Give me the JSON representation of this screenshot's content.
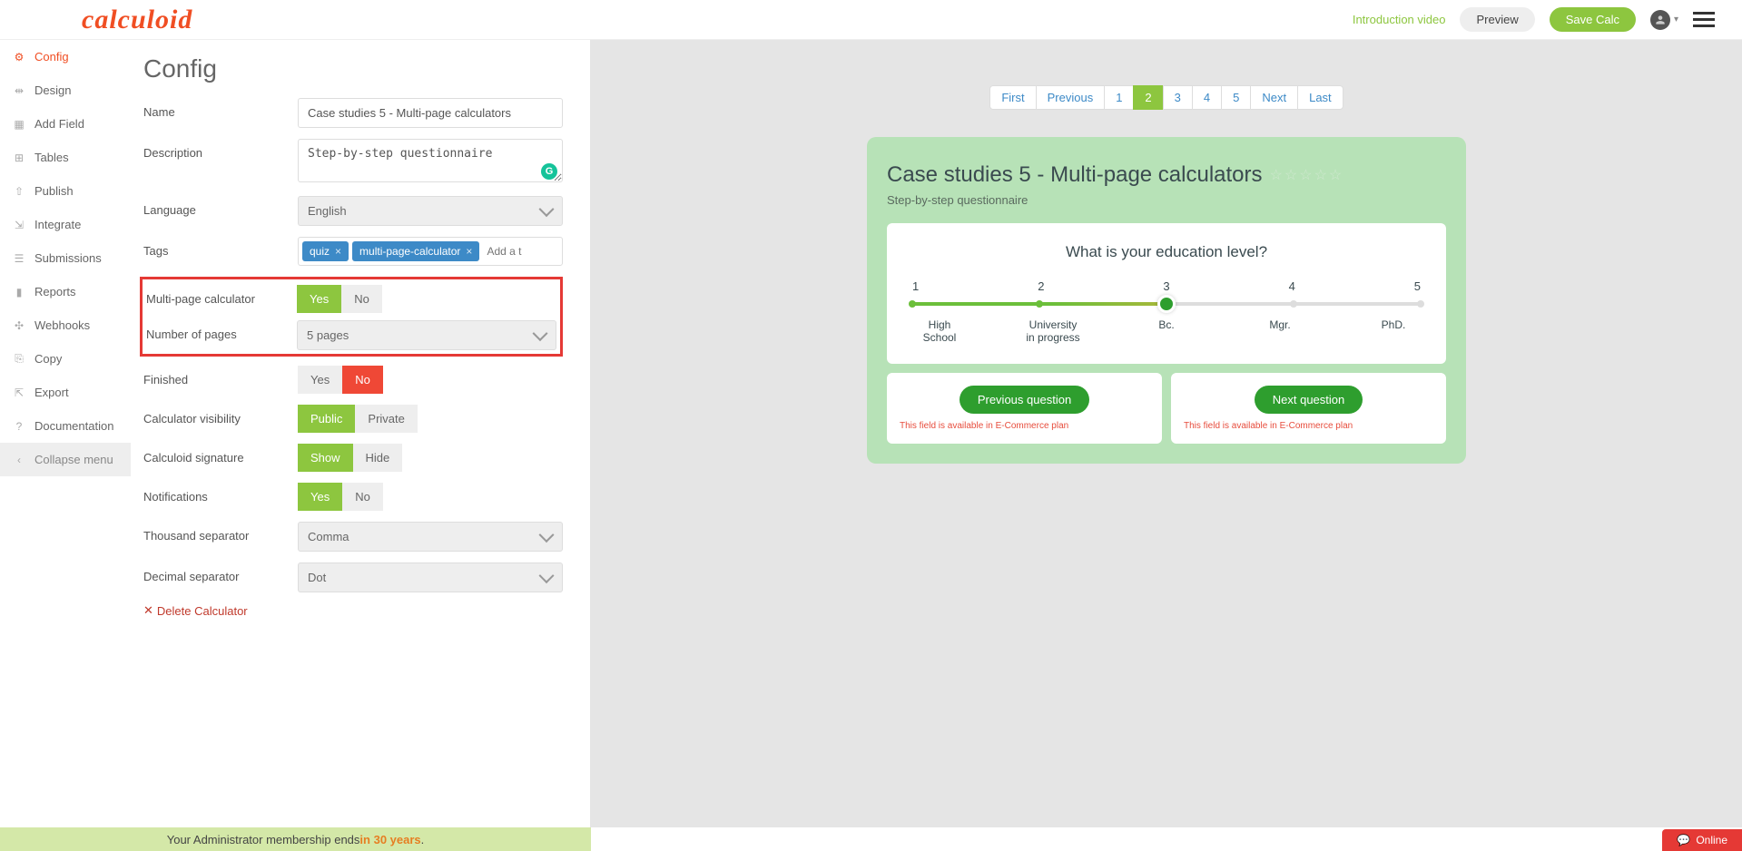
{
  "header": {
    "logo": "calculoid",
    "intro_link": "Introduction video",
    "preview_btn": "Preview",
    "save_btn": "Save Calc"
  },
  "sidebar": {
    "items": [
      {
        "icon": "⚙",
        "label": "Config",
        "active": true
      },
      {
        "icon": "⇹",
        "label": "Design"
      },
      {
        "icon": "▦",
        "label": "Add Field"
      },
      {
        "icon": "⊞",
        "label": "Tables"
      },
      {
        "icon": "⇧",
        "label": "Publish"
      },
      {
        "icon": "⇲",
        "label": "Integrate"
      },
      {
        "icon": "☰",
        "label": "Submissions"
      },
      {
        "icon": "▮",
        "label": "Reports"
      },
      {
        "icon": "✣",
        "label": "Webhooks"
      },
      {
        "icon": "⎘",
        "label": "Copy"
      },
      {
        "icon": "⇱",
        "label": "Export"
      },
      {
        "icon": "?",
        "label": "Documentation"
      },
      {
        "icon": "‹",
        "label": "Collapse menu",
        "collapse": true
      }
    ]
  },
  "config": {
    "title": "Config",
    "name_label": "Name",
    "name_value": "Case studies 5 - Multi-page calculators",
    "description_label": "Description",
    "description_value": "Step-by-step questionnaire",
    "language_label": "Language",
    "language_value": "English",
    "tags_label": "Tags",
    "tags": [
      "quiz",
      "multi-page-calculator"
    ],
    "tag_placeholder": "Add a t",
    "multipage_label": "Multi-page calculator",
    "multipage_yes": "Yes",
    "multipage_no": "No",
    "numpages_label": "Number of pages",
    "numpages_value": "5 pages",
    "finished_label": "Finished",
    "finished_yes": "Yes",
    "finished_no": "No",
    "visibility_label": "Calculator visibility",
    "visibility_public": "Public",
    "visibility_private": "Private",
    "signature_label": "Calculoid signature",
    "signature_show": "Show",
    "signature_hide": "Hide",
    "notifications_label": "Notifications",
    "notifications_yes": "Yes",
    "notifications_no": "No",
    "thousand_label": "Thousand separator",
    "thousand_value": "Comma",
    "decimal_label": "Decimal separator",
    "decimal_value": "Dot",
    "delete_label": "Delete Calculator"
  },
  "preview": {
    "pager": [
      "First",
      "Previous",
      "1",
      "2",
      "3",
      "4",
      "5",
      "Next",
      "Last"
    ],
    "pager_active_index": 3,
    "calc_title": "Case studies 5 - Multi-page calculators",
    "calc_subtitle": "Step-by-step questionnaire",
    "question": "What is your education level?",
    "slider": {
      "nums": [
        "1",
        "2",
        "3",
        "4",
        "5"
      ],
      "labels": [
        "High School",
        "University in progress",
        "Bc.",
        "Mgr.",
        "PhD."
      ],
      "value_index": 2,
      "fill_pct": 50,
      "colors": {
        "fill_start": "#6bbf3a",
        "fill_end": "#a8b83a",
        "handle": "#2e9e2e"
      }
    },
    "prev_btn": "Previous question",
    "next_btn": "Next question",
    "ecom_note": "This field is available in E-Commerce plan"
  },
  "footer": {
    "text_prefix": "Your Administrator membership ends ",
    "highlight": "in 30 years",
    "suffix": "."
  },
  "online_badge": "Online",
  "colors": {
    "brand_green": "#8dc63f",
    "brand_orange": "#f04e23",
    "danger": "#e53935",
    "tag_blue": "#3d8ac7",
    "card_green": "#b7e2b7"
  }
}
